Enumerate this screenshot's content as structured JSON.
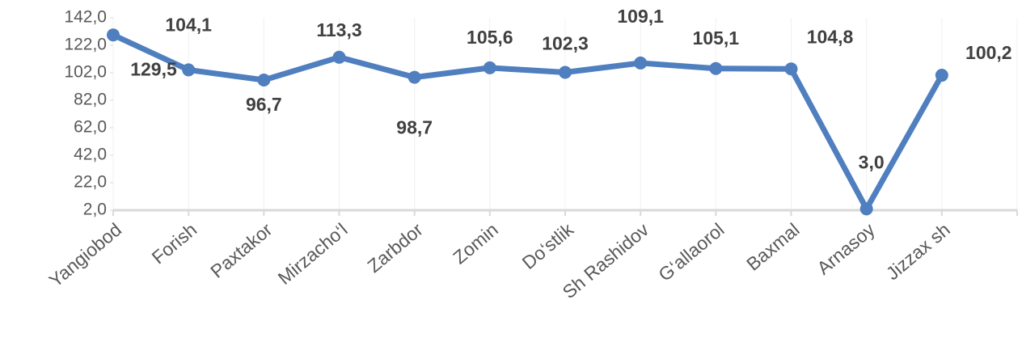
{
  "chart_data": {
    "type": "line",
    "categories": [
      "Yangiobod",
      "Forish",
      "Paxtakor",
      "Mirzacho‘l",
      "Zarbdor",
      "Zomin",
      "Do‘stlik",
      "Sh Rashidov",
      "G‘allaorol",
      "Baxmal",
      "Arnasoy",
      "Jizzax sh"
    ],
    "series": [
      {
        "color": "#4f7fbf",
        "values": [
          129.5,
          104.1,
          96.7,
          113.3,
          98.7,
          105.6,
          102.3,
          109.1,
          105.1,
          104.8,
          3.0,
          100.2
        ],
        "value_labels": [
          "129,5",
          "104,1",
          "96,7",
          "113,3",
          "98,7",
          "105,6",
          "102,3",
          "109,1",
          "105,1",
          "104,8",
          "3,0",
          "100,2"
        ]
      }
    ],
    "ylim": [
      2,
      142
    ],
    "yticks": [
      {
        "value": 2,
        "label": "2,0"
      },
      {
        "value": 22,
        "label": "22,0"
      },
      {
        "value": 42,
        "label": "42,0"
      },
      {
        "value": 62,
        "label": "62,0"
      },
      {
        "value": 82,
        "label": "82,0"
      },
      {
        "value": 102,
        "label": "102,0"
      },
      {
        "value": 122,
        "label": "122,0"
      },
      {
        "value": 142,
        "label": "142,0"
      }
    ]
  }
}
